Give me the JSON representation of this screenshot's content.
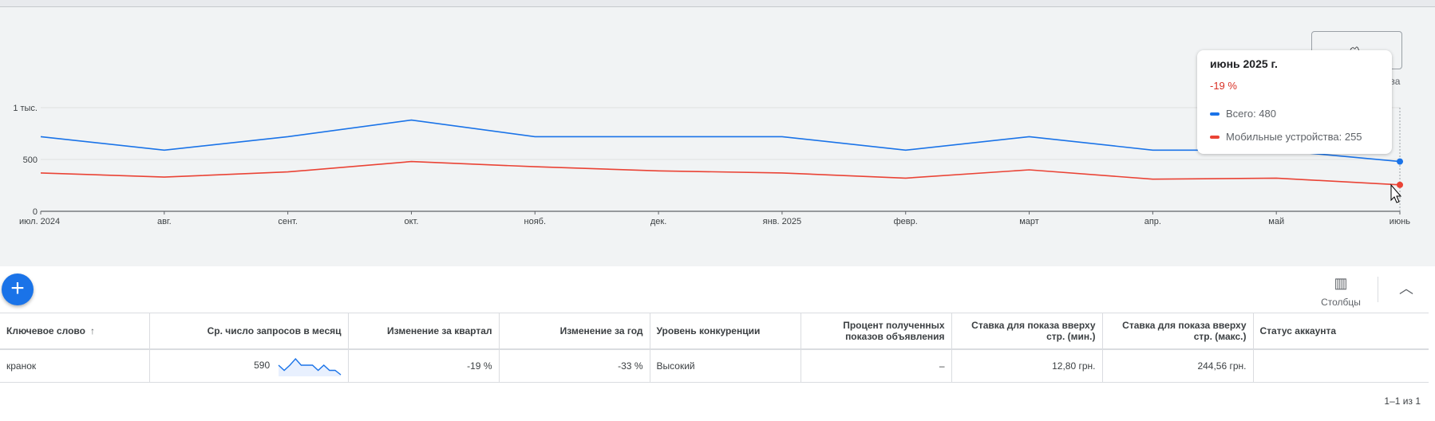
{
  "chart_data": {
    "type": "line",
    "categories": [
      "июл. 2024",
      "авг.",
      "сент.",
      "окт.",
      "нояб.",
      "дек.",
      "янв. 2025",
      "февр.",
      "март",
      "апр.",
      "май",
      "июнь"
    ],
    "series": [
      {
        "name": "Всего",
        "color": "#1a73e8",
        "values": [
          720,
          590,
          720,
          880,
          720,
          720,
          720,
          590,
          720,
          590,
          590,
          480
        ]
      },
      {
        "name": "Мобильные устройства",
        "color": "#ea4335",
        "values": [
          370,
          330,
          380,
          480,
          430,
          390,
          370,
          320,
          400,
          310,
          320,
          255
        ]
      }
    ],
    "y_ticks": [
      {
        "value": 0,
        "label": "0"
      },
      {
        "value": 500,
        "label": "500"
      },
      {
        "value": 1000,
        "label": "1 тыс."
      }
    ],
    "ylim": [
      0,
      1000
    ],
    "grid": true
  },
  "chart": {
    "legend_partial": "ства"
  },
  "tooltip": {
    "title": "июнь 2025 г.",
    "change": "-19 %",
    "rows": [
      {
        "label": "Всего: 480",
        "color": "#1a73e8"
      },
      {
        "label": "Мобильные устройства: 255",
        "color": "#ea4335"
      }
    ]
  },
  "toolbar": {
    "add_label": "+",
    "columns_label": "Столбцы"
  },
  "table": {
    "headers": [
      "Ключевое слово",
      "Ср. число запросов в месяц",
      "Изменение за квартал",
      "Изменение за год",
      "Уровень конкуренции",
      "Процент полученных показов объявления",
      "Ставка для показа вверху стр. (мин.)",
      "Ставка для показа вверху стр. (макс.)",
      "Статус аккаунта"
    ],
    "rows": [
      {
        "keyword": "кранок",
        "avg_searches": "590",
        "trend": [
          720,
          590,
          720,
          880,
          720,
          720,
          720,
          590,
          720,
          590,
          590,
          480
        ],
        "quarter_change": "-19 %",
        "year_change": "-33 %",
        "competition": "Высокий",
        "impression_share": "–",
        "bid_low": "12,80 грн.",
        "bid_high": "244,56 грн.",
        "status": ""
      }
    ]
  },
  "pagination": "1–1 из 1"
}
